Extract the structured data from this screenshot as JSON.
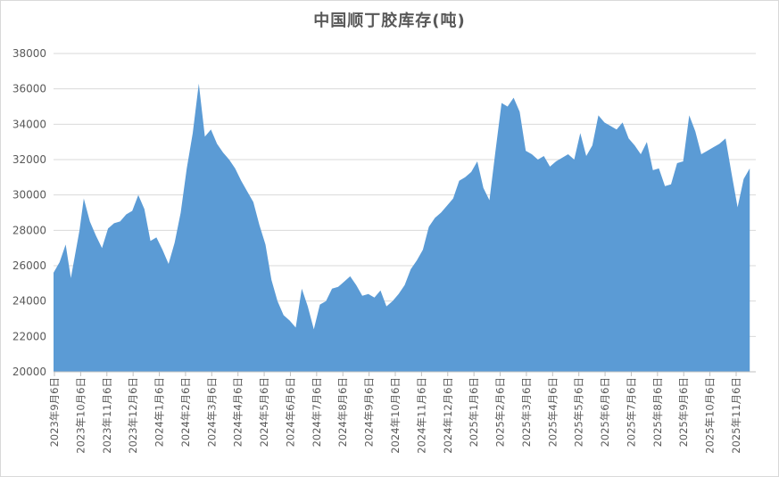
{
  "chart_data": {
    "type": "area",
    "title": "中国顺丁胶库存(吨)",
    "xlabel": "",
    "ylabel": "",
    "ylim": [
      20000,
      38000
    ],
    "yticks": [
      20000,
      22000,
      24000,
      26000,
      28000,
      30000,
      32000,
      34000,
      36000,
      38000
    ],
    "grid": true,
    "legend": "none",
    "color": "#5b9bd5",
    "x_tick_labels": [
      "2023年9月6日",
      "2023年10月6日",
      "2023年11月6日",
      "2023年12月6日",
      "2024年1月6日",
      "2024年2月6日",
      "2024年3月6日",
      "2024年4月6日",
      "2024年5月6日",
      "2024年6月6日",
      "2024年7月6日",
      "2024年8月6日",
      "2024年9月6日",
      "2024年10月6日",
      "2024年11月6日",
      "2024年12月6日",
      "2025年1月6日",
      "2025年2月6日",
      "2025年3月6日",
      "2025年4月6日",
      "2025年5月6日",
      "2025年6月6日",
      "2025年7月6日",
      "2025年8月6日",
      "2025年9月6日",
      "2025年10月6日",
      "2025年11月6日"
    ],
    "x_start": "2023-09-06",
    "x_end": "2025-11-26",
    "series": [
      {
        "name": "",
        "points": [
          [
            "2023-09-06",
            25600
          ],
          [
            "2023-09-13",
            26200
          ],
          [
            "2023-09-20",
            27200
          ],
          [
            "2023-09-26",
            25300
          ],
          [
            "2023-10-06",
            28000
          ],
          [
            "2023-10-11",
            29800
          ],
          [
            "2023-10-18",
            28500
          ],
          [
            "2023-10-25",
            27700
          ],
          [
            "2023-11-01",
            27000
          ],
          [
            "2023-11-08",
            28100
          ],
          [
            "2023-11-15",
            28400
          ],
          [
            "2023-11-22",
            28500
          ],
          [
            "2023-11-29",
            28900
          ],
          [
            "2023-12-06",
            29100
          ],
          [
            "2023-12-13",
            30000
          ],
          [
            "2023-12-20",
            29200
          ],
          [
            "2023-12-27",
            27400
          ],
          [
            "2024-01-03",
            27600
          ],
          [
            "2024-01-10",
            26900
          ],
          [
            "2024-01-17",
            26100
          ],
          [
            "2024-01-24",
            27300
          ],
          [
            "2024-01-31",
            29000
          ],
          [
            "2024-02-07",
            31500
          ],
          [
            "2024-02-14",
            33500
          ],
          [
            "2024-02-21",
            36300
          ],
          [
            "2024-02-28",
            33300
          ],
          [
            "2024-03-06",
            33700
          ],
          [
            "2024-03-13",
            32900
          ],
          [
            "2024-03-20",
            32400
          ],
          [
            "2024-03-27",
            32000
          ],
          [
            "2024-04-03",
            31500
          ],
          [
            "2024-04-10",
            30800
          ],
          [
            "2024-04-17",
            30200
          ],
          [
            "2024-04-24",
            29600
          ],
          [
            "2024-05-01",
            28300
          ],
          [
            "2024-05-08",
            27200
          ],
          [
            "2024-05-15",
            25200
          ],
          [
            "2024-05-22",
            24000
          ],
          [
            "2024-05-29",
            23200
          ],
          [
            "2024-06-05",
            22900
          ],
          [
            "2024-06-12",
            22500
          ],
          [
            "2024-06-19",
            24700
          ],
          [
            "2024-06-26",
            23700
          ],
          [
            "2024-07-03",
            22400
          ],
          [
            "2024-07-10",
            23800
          ],
          [
            "2024-07-17",
            24000
          ],
          [
            "2024-07-24",
            24700
          ],
          [
            "2024-07-31",
            24800
          ],
          [
            "2024-08-07",
            25100
          ],
          [
            "2024-08-14",
            25400
          ],
          [
            "2024-08-21",
            24900
          ],
          [
            "2024-08-28",
            24300
          ],
          [
            "2024-09-04",
            24400
          ],
          [
            "2024-09-11",
            24200
          ],
          [
            "2024-09-18",
            24600
          ],
          [
            "2024-09-25",
            23700
          ],
          [
            "2024-10-02",
            24000
          ],
          [
            "2024-10-09",
            24400
          ],
          [
            "2024-10-16",
            24900
          ],
          [
            "2024-10-23",
            25800
          ],
          [
            "2024-10-30",
            26300
          ],
          [
            "2024-11-06",
            26900
          ],
          [
            "2024-11-13",
            28200
          ],
          [
            "2024-11-20",
            28700
          ],
          [
            "2024-11-27",
            29000
          ],
          [
            "2024-12-04",
            29400
          ],
          [
            "2024-12-11",
            29800
          ],
          [
            "2024-12-18",
            30800
          ],
          [
            "2024-12-25",
            31000
          ],
          [
            "2025-01-01",
            31300
          ],
          [
            "2025-01-08",
            31900
          ],
          [
            "2025-01-15",
            30400
          ],
          [
            "2025-01-22",
            29700
          ],
          [
            "2025-01-29",
            32500
          ],
          [
            "2025-02-05",
            35200
          ],
          [
            "2025-02-12",
            35000
          ],
          [
            "2025-02-19",
            35500
          ],
          [
            "2025-02-26",
            34700
          ],
          [
            "2025-03-05",
            32500
          ],
          [
            "2025-03-12",
            32300
          ],
          [
            "2025-03-19",
            32000
          ],
          [
            "2025-03-26",
            32200
          ],
          [
            "2025-04-02",
            31600
          ],
          [
            "2025-04-09",
            31900
          ],
          [
            "2025-04-16",
            32100
          ],
          [
            "2025-04-23",
            32300
          ],
          [
            "2025-04-30",
            32000
          ],
          [
            "2025-05-07",
            33500
          ],
          [
            "2025-05-14",
            32200
          ],
          [
            "2025-05-21",
            32800
          ],
          [
            "2025-05-28",
            34500
          ],
          [
            "2025-06-04",
            34100
          ],
          [
            "2025-06-11",
            33900
          ],
          [
            "2025-06-18",
            33700
          ],
          [
            "2025-06-25",
            34100
          ],
          [
            "2025-07-02",
            33200
          ],
          [
            "2025-07-09",
            32800
          ],
          [
            "2025-07-16",
            32300
          ],
          [
            "2025-07-23",
            33000
          ],
          [
            "2025-07-30",
            31400
          ],
          [
            "2025-08-06",
            31500
          ],
          [
            "2025-08-13",
            30500
          ],
          [
            "2025-08-20",
            30600
          ],
          [
            "2025-08-27",
            31800
          ],
          [
            "2025-09-03",
            31900
          ],
          [
            "2025-09-10",
            34500
          ],
          [
            "2025-09-17",
            33600
          ],
          [
            "2025-09-24",
            32300
          ],
          [
            "2025-10-01",
            32500
          ],
          [
            "2025-10-08",
            32700
          ],
          [
            "2025-10-15",
            32900
          ],
          [
            "2025-10-22",
            33200
          ],
          [
            "2025-10-29",
            31200
          ],
          [
            "2025-11-05",
            29300
          ],
          [
            "2025-11-12",
            30900
          ],
          [
            "2025-11-19",
            31500
          ]
        ]
      }
    ]
  }
}
